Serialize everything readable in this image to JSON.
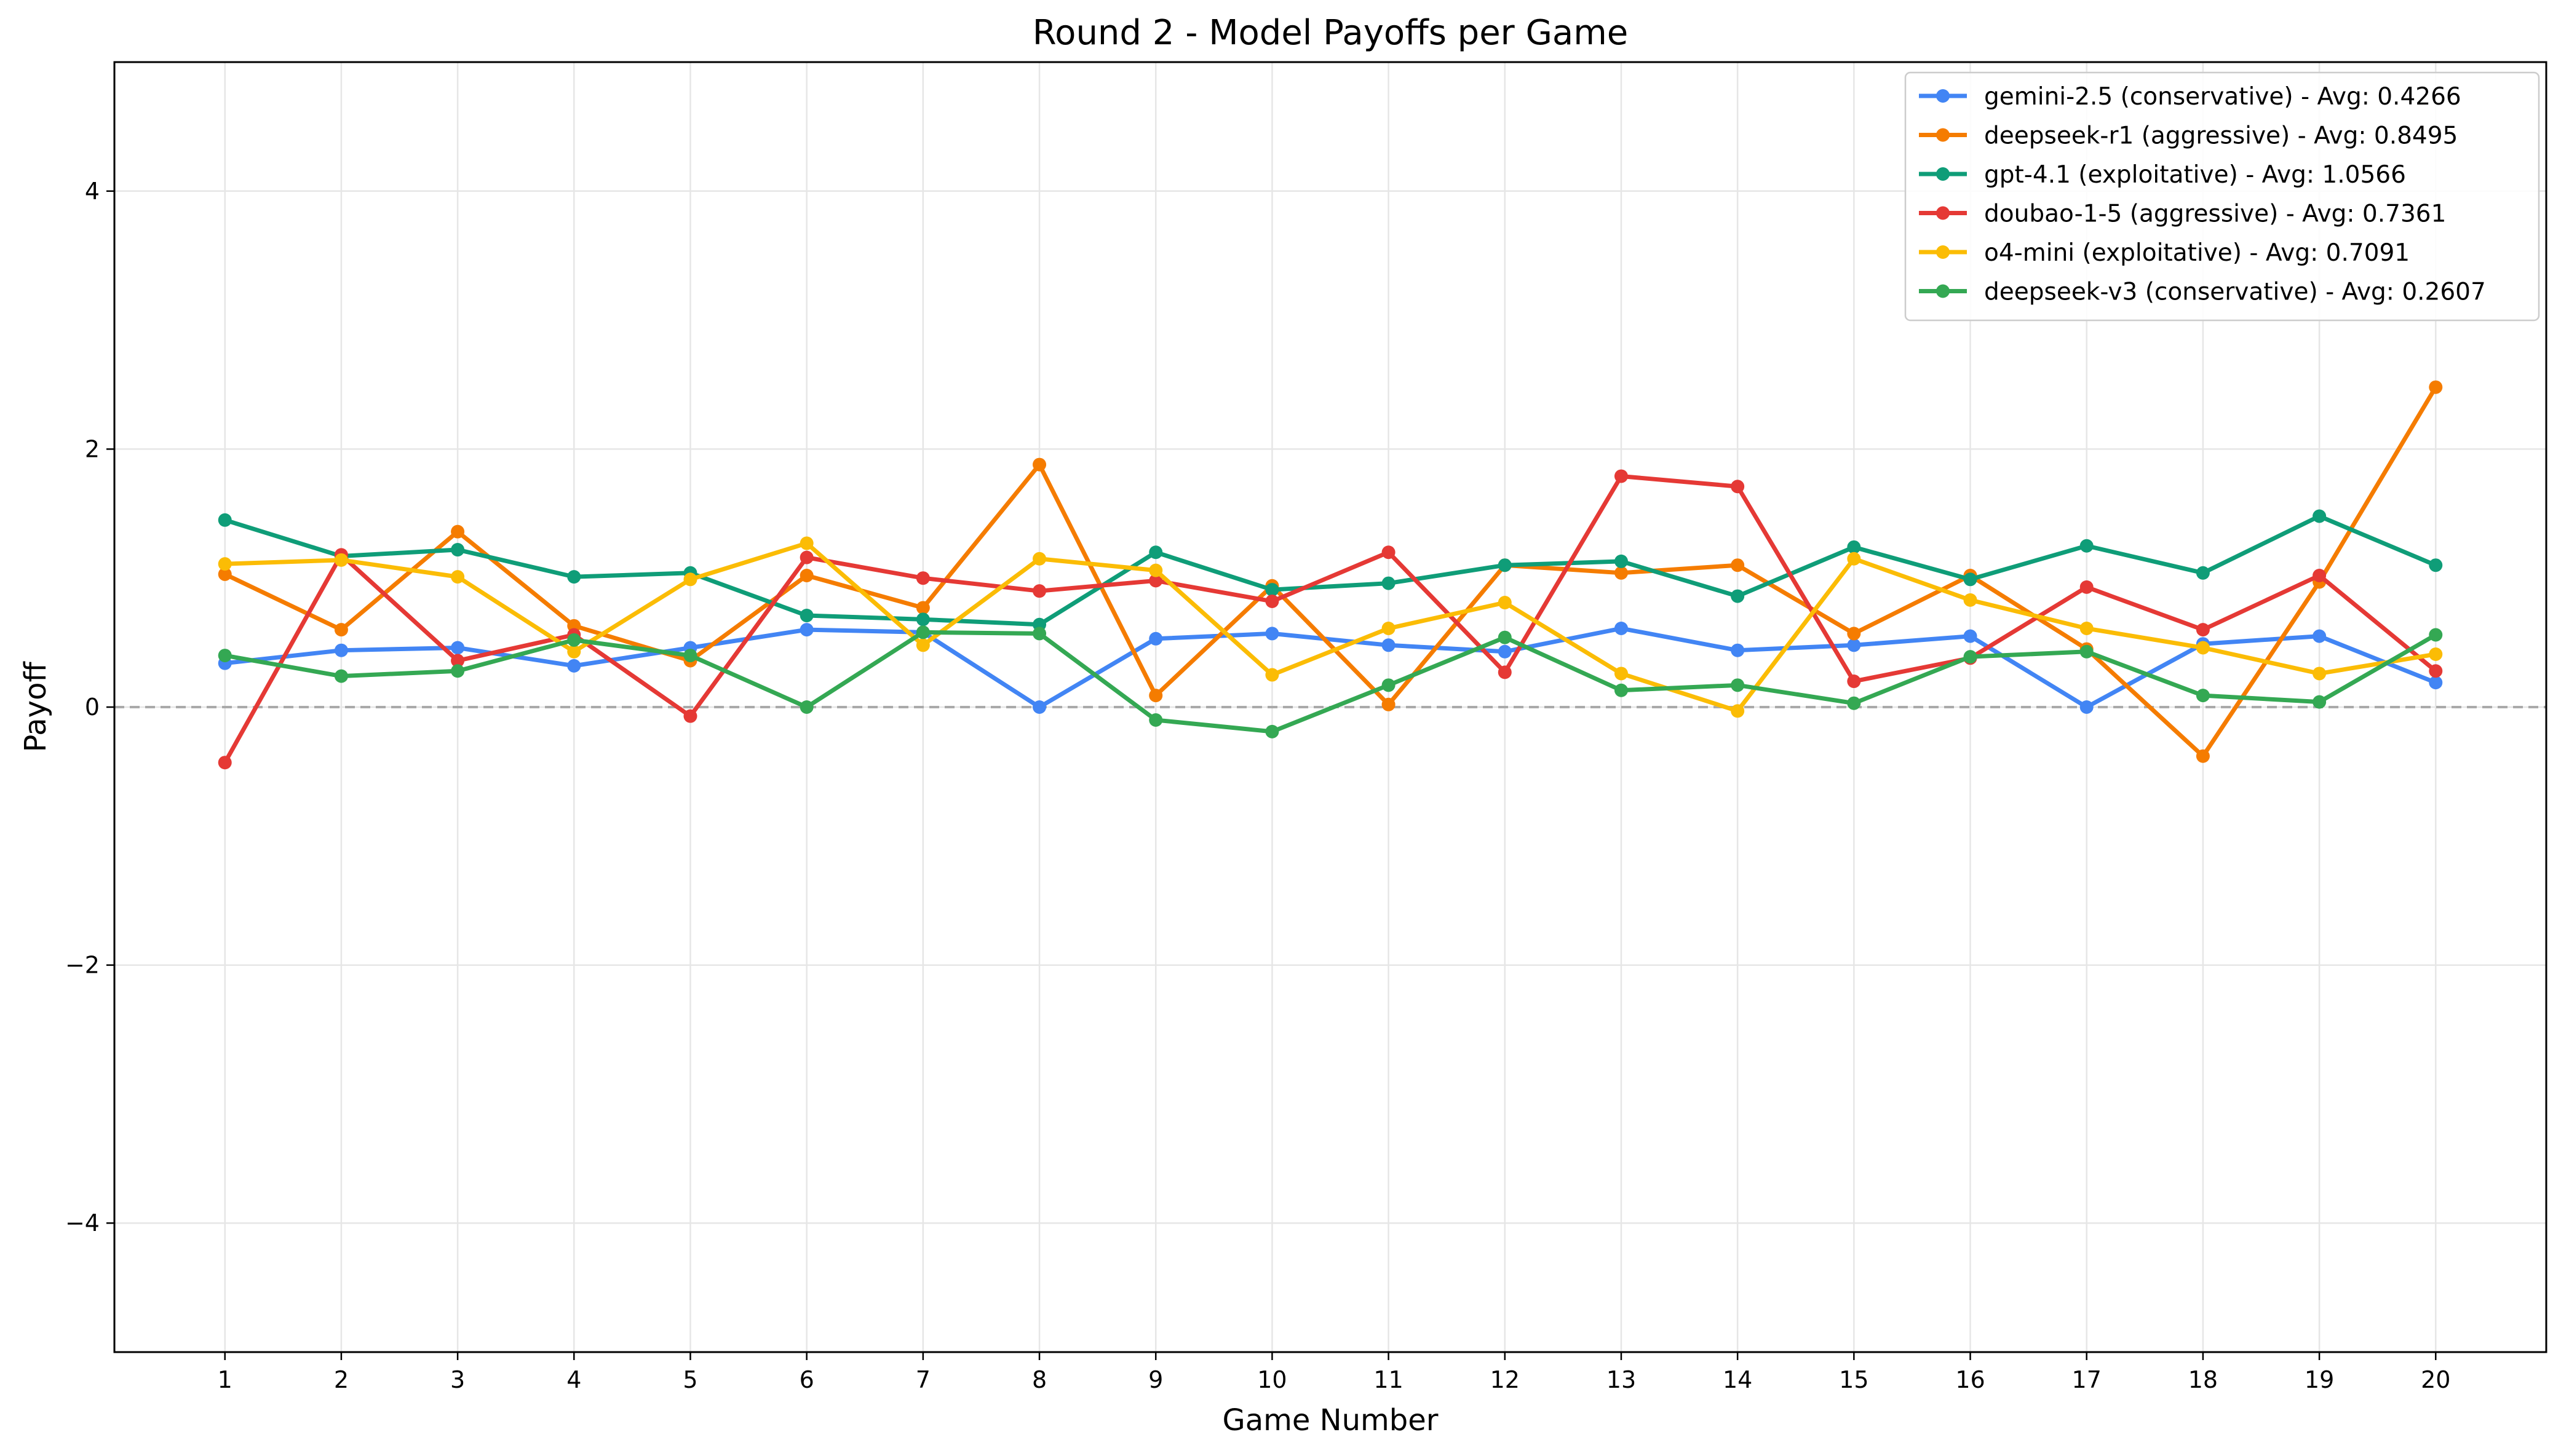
{
  "chart_data": {
    "type": "line",
    "title": "Round 2 - Model Payoffs per Game",
    "xlabel": "Game Number",
    "ylabel": "Payoff",
    "x": [
      1,
      2,
      3,
      4,
      5,
      6,
      7,
      8,
      9,
      10,
      11,
      12,
      13,
      14,
      15,
      16,
      17,
      18,
      19,
      20
    ],
    "x_tick_labels": [
      "1",
      "2",
      "3",
      "4",
      "5",
      "6",
      "7",
      "8",
      "9",
      "10",
      "11",
      "12",
      "13",
      "14",
      "15",
      "16",
      "17",
      "18",
      "19",
      "20"
    ],
    "xlim": [
      0.05,
      20.95
    ],
    "ylim": [
      -5,
      5
    ],
    "y_ticks": [
      4,
      2,
      0,
      -2,
      -4
    ],
    "y_tick_labels": [
      "4",
      "2",
      "0",
      "−2",
      "−4"
    ],
    "grid": true,
    "reference_line": {
      "y": 0,
      "style": "dashed",
      "color": "#aaaaaa"
    },
    "legend_position": "top-right",
    "series": [
      {
        "name": "gemini-2.5 (conservative) - Avg: 0.4266",
        "color": "#4285f4",
        "values": [
          0.34,
          0.44,
          0.46,
          0.32,
          0.46,
          0.6,
          0.58,
          0.0,
          0.53,
          0.57,
          0.48,
          0.43,
          0.61,
          0.44,
          0.48,
          0.55,
          0.0,
          0.49,
          0.55,
          0.19
        ]
      },
      {
        "name": "deepseek-r1 (aggressive) - Avg: 0.8495",
        "color": "#f57c00",
        "values": [
          1.03,
          0.6,
          1.36,
          0.63,
          0.36,
          1.02,
          0.77,
          1.88,
          0.09,
          0.94,
          0.02,
          1.1,
          1.04,
          1.1,
          0.57,
          1.02,
          0.45,
          -0.38,
          0.97,
          2.48
        ]
      },
      {
        "name": "gpt-4.1 (exploitative) - Avg: 1.0566",
        "color": "#0f9d78",
        "values": [
          1.45,
          1.17,
          1.22,
          1.01,
          1.04,
          0.71,
          0.68,
          0.64,
          1.2,
          0.91,
          0.96,
          1.1,
          1.13,
          0.86,
          1.24,
          0.99,
          1.25,
          1.04,
          1.48,
          1.1
        ]
      },
      {
        "name": "doubao-1-5 (aggressive) - Avg: 0.7361",
        "color": "#e53935",
        "values": [
          -0.43,
          1.18,
          0.36,
          0.56,
          -0.07,
          1.16,
          1.0,
          0.9,
          0.98,
          0.82,
          1.2,
          0.27,
          1.79,
          1.71,
          0.2,
          0.38,
          0.93,
          0.6,
          1.02,
          0.28
        ]
      },
      {
        "name": "o4-mini (exploitative) - Avg: 0.7091",
        "color": "#fbbc05",
        "values": [
          1.11,
          1.14,
          1.01,
          0.43,
          0.99,
          1.27,
          0.48,
          1.15,
          1.06,
          0.25,
          0.61,
          0.81,
          0.26,
          -0.03,
          1.15,
          0.83,
          0.61,
          0.46,
          0.26,
          0.41
        ]
      },
      {
        "name": "deepseek-v3 (conservative) - Avg: 0.2607",
        "color": "#34a853",
        "values": [
          0.4,
          0.24,
          0.28,
          0.52,
          0.4,
          0.0,
          0.58,
          0.57,
          -0.1,
          -0.19,
          0.17,
          0.54,
          0.13,
          0.17,
          0.03,
          0.39,
          0.43,
          0.09,
          0.04,
          0.56
        ]
      }
    ]
  }
}
